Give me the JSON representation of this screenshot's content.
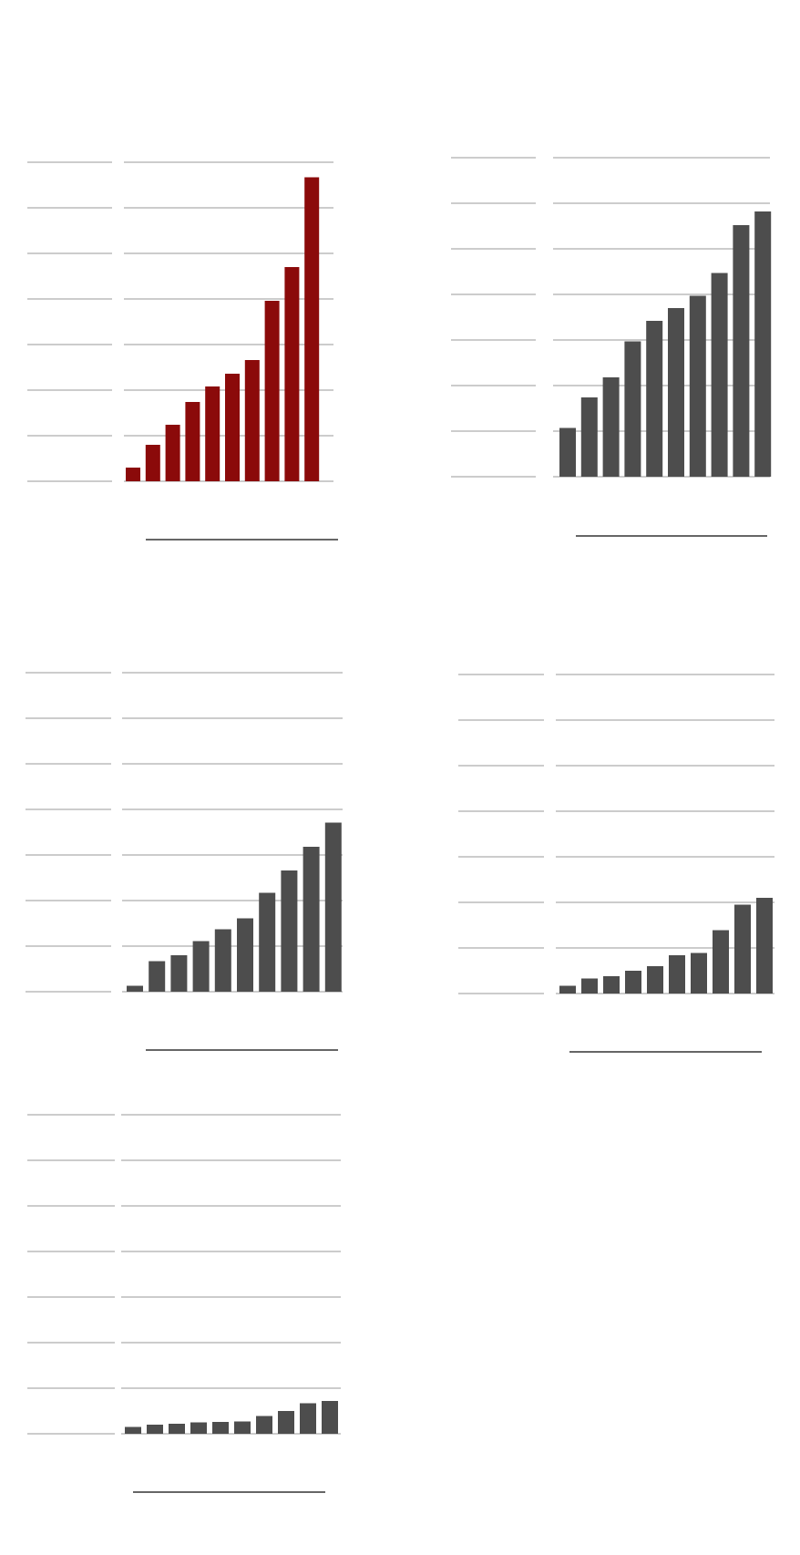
{
  "colors": {
    "highlight": "#8b0a0a",
    "default": "#4d4d4d",
    "grid": "#cccccc",
    "rule": "#333333"
  },
  "chart_data": [
    {
      "type": "bar",
      "color": "#8b0a0a",
      "ylim": [
        0,
        7
      ],
      "grid": true,
      "values": [
        0.3,
        0.8,
        1.24,
        1.74,
        2.08,
        2.36,
        2.66,
        3.96,
        4.7,
        6.67
      ]
    },
    {
      "type": "bar",
      "color": "#4d4d4d",
      "ylim": [
        0,
        7
      ],
      "grid": true,
      "values": [
        1.07,
        1.74,
        2.18,
        2.97,
        3.42,
        3.7,
        3.97,
        4.47,
        5.52,
        5.82
      ]
    },
    {
      "type": "bar",
      "color": "#4d4d4d",
      "ylim": [
        0,
        7
      ],
      "grid": true,
      "values": [
        0.13,
        0.67,
        0.8,
        1.11,
        1.37,
        1.61,
        2.17,
        2.66,
        3.18,
        3.71
      ]
    },
    {
      "type": "bar",
      "color": "#4d4d4d",
      "ylim": [
        0,
        7
      ],
      "grid": true,
      "values": [
        0.17,
        0.33,
        0.38,
        0.5,
        0.6,
        0.84,
        0.89,
        1.39,
        1.95,
        2.1
      ]
    },
    {
      "type": "bar",
      "color": "#4d4d4d",
      "ylim": [
        0,
        7
      ],
      "grid": true,
      "values": [
        0.15,
        0.2,
        0.22,
        0.25,
        0.26,
        0.27,
        0.39,
        0.5,
        0.67,
        0.72
      ]
    }
  ]
}
